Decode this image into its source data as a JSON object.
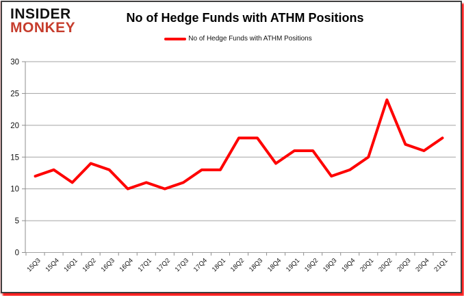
{
  "logo": {
    "line1": "INSIDER",
    "line2": "MONKEY"
  },
  "header": {
    "title": "No of Hedge Funds with ATHM Positions"
  },
  "legend": {
    "label": "No of Hedge Funds with ATHM Positions"
  },
  "colors": {
    "series_red": "#fe0000",
    "logo_red": "#c63d2d",
    "logo_black": "#111111",
    "gridline_gray": "#a3a3a3",
    "axis_gray": "#8c8c8c",
    "tick_text": "#111111"
  },
  "chart_data": {
    "type": "line",
    "title": "No of Hedge Funds with ATHM Positions",
    "xlabel": "",
    "ylabel": "",
    "categories": [
      "15Q3",
      "15Q4",
      "16Q1",
      "16Q2",
      "16Q3",
      "16Q4",
      "17Q1",
      "17Q2",
      "17Q3",
      "17Q4",
      "18Q1",
      "18Q2",
      "18Q3",
      "18Q4",
      "19Q1",
      "19Q2",
      "19Q3",
      "19Q4",
      "20Q1",
      "20Q2",
      "20Q3",
      "20Q4",
      "21Q1"
    ],
    "series": [
      {
        "name": "No of Hedge Funds with ATHM Positions",
        "color": "#fe0000",
        "values": [
          12,
          13,
          11,
          14,
          13,
          10,
          11,
          10,
          11,
          13,
          13,
          18,
          18,
          14,
          16,
          16,
          12,
          13,
          15,
          24,
          17,
          16,
          18
        ]
      }
    ],
    "ylim": [
      0,
      30
    ],
    "yticks": [
      0,
      5,
      10,
      15,
      20,
      25,
      30
    ],
    "grid": true,
    "legend_position": "top-center"
  }
}
